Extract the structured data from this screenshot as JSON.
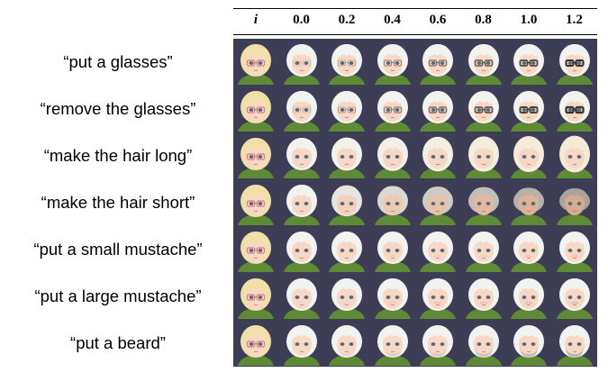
{
  "columns": [
    "i",
    "0.0",
    "0.2",
    "0.4",
    "0.6",
    "0.8",
    "1.0",
    "1.2"
  ],
  "rows": [
    {
      "label": "“put a glasses”",
      "edit": "glasses_on"
    },
    {
      "label": "“remove the glasses”",
      "edit": "glasses_off"
    },
    {
      "label": "“make the hair long”",
      "edit": "hair_long"
    },
    {
      "label": "“make the hair short”",
      "edit": "hair_short"
    },
    {
      "label": "“put a small mustache”",
      "edit": "small_mustache"
    },
    {
      "label": "“put a large mustache”",
      "edit": "large_mustache"
    },
    {
      "label": "“put a beard”",
      "edit": "beard"
    }
  ],
  "colors": {
    "background": "#3d3d55",
    "input_hair": "#f0e0a8",
    "output_hair": "#f2f2f0",
    "skin": "#f6d8c4",
    "shirt": "#5f8a35",
    "input_glasses": "#e07a7a",
    "edit_glasses": "#333333"
  }
}
